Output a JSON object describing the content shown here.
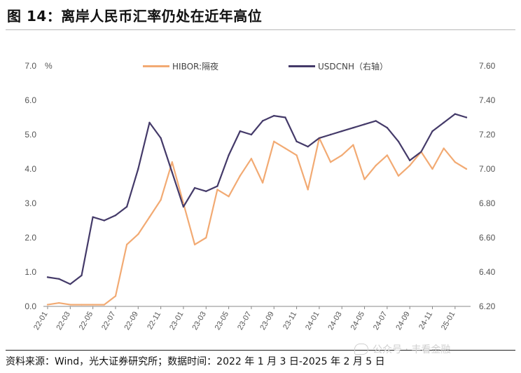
{
  "title": "图 14：离岸人民币汇率仍处在近年高位",
  "source": "资料来源：Wind，光大证券研究所；数据时间：2022 年 1 月 3 日-2025 年 2 月 5 日",
  "watermark": "公众号 · 丰看金融",
  "colors": {
    "hibor": "#f2aa73",
    "usdcnh": "#443a69"
  },
  "chart_data": {
    "type": "line",
    "x": [
      "22-01",
      "22-02",
      "22-03",
      "22-04",
      "22-05",
      "22-06",
      "22-07",
      "22-08",
      "22-09",
      "22-10",
      "22-11",
      "22-12",
      "23-01",
      "23-02",
      "23-03",
      "23-04",
      "23-05",
      "23-06",
      "23-07",
      "23-08",
      "23-09",
      "23-10",
      "23-11",
      "23-12",
      "24-01",
      "24-02",
      "24-03",
      "24-04",
      "24-05",
      "24-06",
      "24-07",
      "24-08",
      "24-09",
      "24-10",
      "24-11",
      "24-12",
      "25-01",
      "25-02"
    ],
    "x_tick_labels": [
      "22-01",
      "22-03",
      "22-05",
      "22-07",
      "22-09",
      "22-11",
      "23-01",
      "23-03",
      "23-05",
      "23-07",
      "23-09",
      "23-11",
      "24-01",
      "24-03",
      "24-05",
      "24-07",
      "24-09",
      "24-11",
      "25-01"
    ],
    "y_left": {
      "unit": "%",
      "range": [
        0,
        7
      ],
      "ticks": [
        "0.0",
        "1.0",
        "2.0",
        "3.0",
        "4.0",
        "5.0",
        "6.0",
        "7.0"
      ]
    },
    "y_right": {
      "range": [
        6.2,
        7.6
      ],
      "ticks": [
        "6.20",
        "6.40",
        "6.60",
        "6.80",
        "7.00",
        "7.20",
        "7.40",
        "7.60"
      ]
    },
    "grid": false,
    "legend_position": "top",
    "series": [
      {
        "name": "HIBOR:隔夜",
        "axis": "left",
        "values": [
          0.05,
          0.1,
          0.05,
          0.05,
          0.05,
          0.05,
          0.3,
          1.8,
          2.1,
          2.6,
          3.1,
          4.2,
          3.0,
          1.8,
          2.0,
          3.4,
          3.2,
          3.8,
          4.3,
          3.6,
          4.8,
          4.6,
          4.4,
          3.4,
          4.9,
          4.2,
          4.4,
          4.7,
          3.7,
          4.1,
          4.4,
          3.8,
          4.1,
          4.5,
          4.0,
          4.6,
          4.2,
          4.0
        ]
      },
      {
        "name": "USDCNH（右轴）",
        "axis": "right",
        "values": [
          6.37,
          6.36,
          6.33,
          6.38,
          6.72,
          6.7,
          6.73,
          6.78,
          7.0,
          7.27,
          7.18,
          6.98,
          6.78,
          6.89,
          6.87,
          6.9,
          7.08,
          7.22,
          7.2,
          7.28,
          7.31,
          7.3,
          7.16,
          7.13,
          7.18,
          7.2,
          7.22,
          7.24,
          7.26,
          7.28,
          7.24,
          7.16,
          7.05,
          7.1,
          7.22,
          7.27,
          7.32,
          7.3
        ]
      }
    ]
  }
}
